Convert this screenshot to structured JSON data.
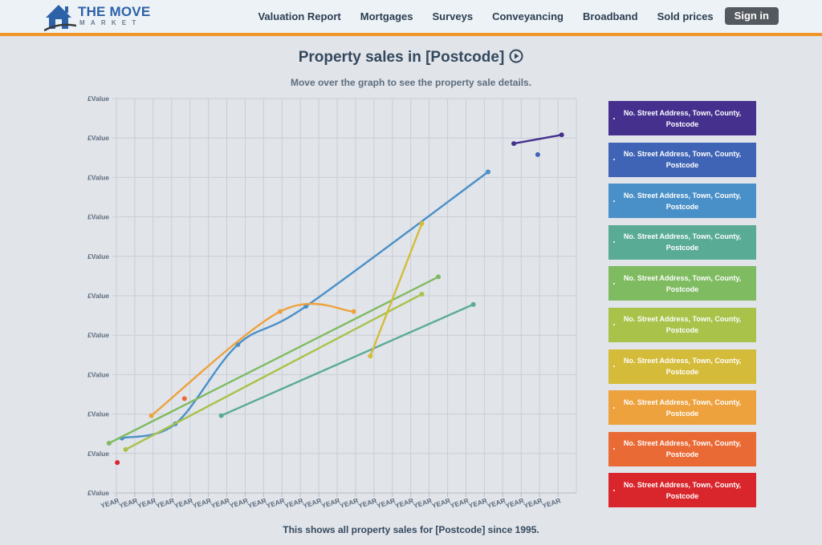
{
  "header": {
    "logo_line1": "THE MOVE",
    "logo_line2": "MARKET",
    "nav": [
      "Valuation Report",
      "Mortgages",
      "Surveys",
      "Conveyancing",
      "Broadband",
      "Sold prices"
    ],
    "signin_label": "Sign in",
    "accent_color": "#f0952a"
  },
  "page": {
    "title": "Property sales in [Postcode]",
    "subtitle": "Move over the graph to see the property sale details.",
    "footer": "This shows all property sales for [Postcode] since 1995."
  },
  "chart_data": {
    "type": "line",
    "title": "Property sales in [Postcode]",
    "xlabel": "",
    "ylabel": "",
    "y_tick_labels": [
      "£Value",
      "£Value",
      "£Value",
      "£Value",
      "£Value",
      "£Value",
      "£Value",
      "£Value",
      "£Value",
      "£Value",
      "£Value"
    ],
    "x_tick_labels": [
      "YEAR",
      "YEAR",
      "YEAR",
      "YEAR",
      "YEAR",
      "YEAR",
      "YEAR",
      "YEAR",
      "YEAR",
      "YEAR",
      "YEAR",
      "YEAR",
      "YEAR",
      "YEAR",
      "YEAR",
      "YEAR",
      "YEAR",
      "YEAR",
      "YEAR",
      "YEAR",
      "YEAR",
      "YEAR",
      "YEAR",
      "YEAR",
      "YEAR"
    ],
    "xlim": [
      0,
      25
    ],
    "ylim": [
      0,
      10
    ],
    "grid": true,
    "legend_position": "right",
    "series": [
      {
        "label": "No. Street Address, Town, County, Postcode",
        "color": "#45308e",
        "smooth": false,
        "points": [
          [
            21.6,
            8.86
          ],
          [
            24.2,
            9.08
          ]
        ]
      },
      {
        "label": "No. Street Address, Town, County, Postcode",
        "color": "#3f64b5",
        "smooth": false,
        "points": [
          [
            22.9,
            8.58
          ]
        ]
      },
      {
        "label": "No. Street Address, Town, County, Postcode",
        "color": "#4a90c8",
        "smooth": true,
        "points": [
          [
            0.3,
            1.39
          ],
          [
            3.2,
            1.75
          ],
          [
            6.6,
            3.76
          ],
          [
            10.3,
            4.73
          ],
          [
            20.2,
            8.14
          ]
        ]
      },
      {
        "label": "No. Street Address, Town, County, Postcode",
        "color": "#5aab96",
        "smooth": false,
        "points": [
          [
            5.7,
            1.96
          ],
          [
            19.4,
            4.78
          ]
        ]
      },
      {
        "label": "No. Street Address, Town, County, Postcode",
        "color": "#7fbb61",
        "smooth": false,
        "points": [
          [
            -0.4,
            1.26
          ],
          [
            17.5,
            5.48
          ]
        ]
      },
      {
        "label": "No. Street Address, Town, County, Postcode",
        "color": "#a8c24a",
        "smooth": false,
        "points": [
          [
            0.5,
            1.1
          ],
          [
            16.6,
            5.04
          ]
        ]
      },
      {
        "label": "No. Street Address, Town, County, Postcode",
        "color": "#d4bc3a",
        "smooth": false,
        "points": [
          [
            13.8,
            3.47
          ],
          [
            16.6,
            6.83
          ]
        ]
      },
      {
        "label": "No. Street Address, Town, County, Postcode",
        "color": "#eda23e",
        "smooth": true,
        "points": [
          [
            1.9,
            1.96
          ],
          [
            8.9,
            4.6
          ],
          [
            12.9,
            4.6
          ]
        ]
      },
      {
        "label": "No. Street Address, Town, County, Postcode",
        "color": "#ea6a35",
        "smooth": false,
        "points": [
          [
            3.7,
            2.39
          ]
        ]
      },
      {
        "label": "No. Street Address, Town, County, Postcode",
        "color": "#d8262c",
        "smooth": false,
        "points": [
          [
            0.05,
            0.77
          ]
        ]
      }
    ]
  },
  "legend": {
    "items": [
      {
        "text": "No. Street Address, Town, County, Postcode",
        "color": "#45308e"
      },
      {
        "text": "No. Street Address, Town, County, Postcode",
        "color": "#3f64b5"
      },
      {
        "text": "No. Street Address, Town, County, Postcode",
        "color": "#4a90c8"
      },
      {
        "text": "No. Street Address, Town, County, Postcode",
        "color": "#5aab96"
      },
      {
        "text": "No. Street Address, Town, County, Postcode",
        "color": "#7fbb61"
      },
      {
        "text": "No. Street Address, Town, County, Postcode",
        "color": "#a8c24a"
      },
      {
        "text": "No. Street Address, Town, County, Postcode",
        "color": "#d4bc3a"
      },
      {
        "text": "No. Street Address, Town, County, Postcode",
        "color": "#eda23e"
      },
      {
        "text": "No. Street Address, Town, County, Postcode",
        "color": "#ea6a35"
      },
      {
        "text": "No. Street Address, Town, County, Postcode",
        "color": "#d8262c"
      }
    ]
  }
}
